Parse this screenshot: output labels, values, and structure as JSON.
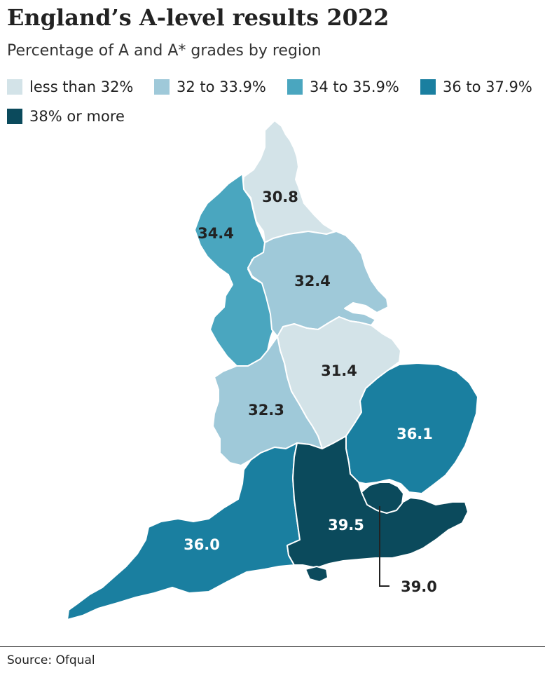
{
  "title": "England’s A-level results 2022",
  "subtitle": "Percentage of A and A* grades by region",
  "legend": [
    {
      "label": "less than 32%",
      "color": "#d3e3e8"
    },
    {
      "label": "32 to 33.9%",
      "color": "#9fc9d9"
    },
    {
      "label": "34 to 35.9%",
      "color": "#4aa6bf"
    },
    {
      "label": "36 to 37.9%",
      "color": "#1a7fa0"
    },
    {
      "label": "38% or more",
      "color": "#0b4a5c"
    }
  ],
  "regions": [
    {
      "name": "north-east",
      "value": "30.8",
      "color": "#d3e3e8",
      "label_color": "#222222"
    },
    {
      "name": "north-west",
      "value": "34.4",
      "color": "#4aa6bf",
      "label_color": "#222222"
    },
    {
      "name": "yorkshire-and-the-humber",
      "value": "32.4",
      "color": "#9fc9d9",
      "label_color": "#222222"
    },
    {
      "name": "east-midlands",
      "value": "31.4",
      "color": "#d3e3e8",
      "label_color": "#222222"
    },
    {
      "name": "west-midlands",
      "value": "32.3",
      "color": "#9fc9d9",
      "label_color": "#222222"
    },
    {
      "name": "east-of-england",
      "value": "36.1",
      "color": "#1a7fa0",
      "label_color": "#ffffff"
    },
    {
      "name": "south-west",
      "value": "36.0",
      "color": "#1a7fa0",
      "label_color": "#ffffff"
    },
    {
      "name": "south-east",
      "value": "39.5",
      "color": "#0b4a5c",
      "label_color": "#ffffff"
    },
    {
      "name": "london",
      "value": "39.0",
      "color": "#0b4a5c",
      "label_color": "#222222"
    }
  ],
  "source": "Source: Ofqual"
}
